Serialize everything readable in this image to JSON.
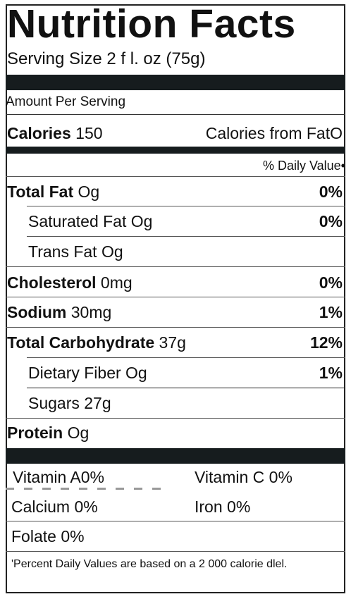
{
  "title": "Nutrition Facts",
  "serving_size": "Serving Size 2 f l. oz  (75g)",
  "amount_per_serving": "Amount Per Serving",
  "calories": {
    "label": "Calories",
    "value": "150",
    "from_fat_label": "Calories  from Fat",
    "from_fat_value": "O"
  },
  "daily_value_header": "% Daily Value•",
  "nutrients": [
    {
      "label": "Total Fat",
      "amount": "Og",
      "dv": "0%"
    },
    {
      "label": "Saturated Fat",
      "amount": "Og",
      "dv": "0%"
    },
    {
      "label": "Trans Fat",
      "amount": "Og",
      "dv": ""
    },
    {
      "label": "Cholesterol",
      "amount": "0mg",
      "dv": "0%"
    },
    {
      "label": "Sodium",
      "amount": "30mg",
      "dv": "1%"
    },
    {
      "label": "Total Carbohydrate",
      "amount": "37g",
      "dv": "12%"
    },
    {
      "label": "Dietary Fiber",
      "amount": "Og",
      "dv": "1%"
    },
    {
      "label": "Sugars",
      "amount": "27g",
      "dv": ""
    },
    {
      "label": "Protein",
      "amount": "Og",
      "dv": ""
    }
  ],
  "vitamins": [
    {
      "text": "Vitamin A0%"
    },
    {
      "text": "Vitamin C 0%"
    },
    {
      "text": "Calcium 0%"
    },
    {
      "text": "Iron 0%"
    },
    {
      "text": "Folate 0%"
    }
  ],
  "footnote": "'Percent Daily Values are based on a 2 000 calorie dlel."
}
